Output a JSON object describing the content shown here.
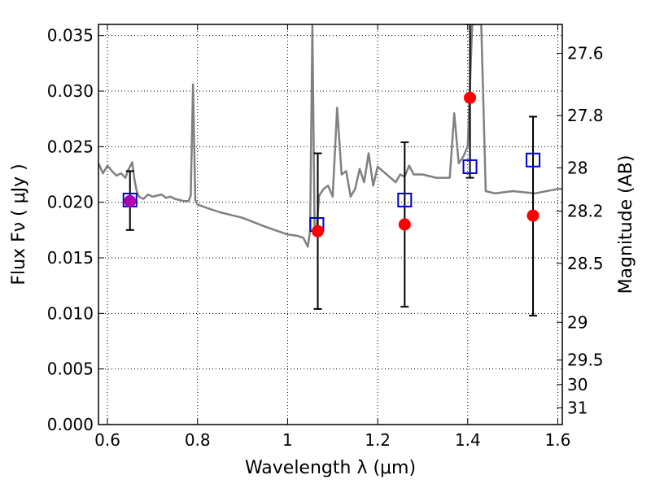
{
  "chart_data": {
    "type": "scatter",
    "xlabel": "Wavelength  λ (μm)",
    "ylabel": "Flux  Fν  ( μJy )",
    "ylabel_right": "Magnitude (AB)",
    "xlim": [
      0.58,
      1.61
    ],
    "ylim": [
      0.0,
      0.036
    ],
    "grid": true,
    "x_ticks": [
      0.6,
      0.8,
      1.0,
      1.2,
      1.4,
      1.6
    ],
    "x_tick_labels": [
      "0.6",
      "0.8",
      "1",
      "1.2",
      "1.4",
      "1.6"
    ],
    "y_ticks": [
      0.0,
      0.005,
      0.01,
      0.015,
      0.02,
      0.025,
      0.03,
      0.035
    ],
    "y_tick_labels": [
      "0.000",
      "0.005",
      "0.010",
      "0.015",
      "0.020",
      "0.025",
      "0.030",
      "0.035"
    ],
    "right_ticks": [
      {
        "label": "27.6",
        "flux": 0.0334
      },
      {
        "label": "27.8",
        "flux": 0.0278
      },
      {
        "label": "28",
        "flux": 0.0231
      },
      {
        "label": "28.2",
        "flux": 0.0192
      },
      {
        "label": "28.5",
        "flux": 0.0145
      },
      {
        "label": "29",
        "flux": 0.0092
      },
      {
        "label": "29.5",
        "flux": 0.0058
      },
      {
        "label": "30",
        "flux": 0.0036
      },
      {
        "label": "31",
        "flux": 0.0015
      }
    ],
    "model_spectrum": {
      "color": "#808080",
      "x": [
        0.58,
        0.59,
        0.6,
        0.61,
        0.62,
        0.63,
        0.64,
        0.645,
        0.655,
        0.66,
        0.665,
        0.67,
        0.68,
        0.69,
        0.7,
        0.71,
        0.72,
        0.73,
        0.74,
        0.75,
        0.76,
        0.77,
        0.78,
        0.785,
        0.79,
        0.795,
        0.8,
        0.82,
        0.85,
        0.9,
        0.95,
        1.0,
        1.02,
        1.035,
        1.045,
        1.05,
        1.055,
        1.06,
        1.065,
        1.07,
        1.08,
        1.09,
        1.1,
        1.11,
        1.12,
        1.13,
        1.14,
        1.15,
        1.16,
        1.17,
        1.18,
        1.19,
        1.2,
        1.22,
        1.24,
        1.25,
        1.26,
        1.27,
        1.28,
        1.3,
        1.33,
        1.36,
        1.37,
        1.38,
        1.39,
        1.4,
        1.41,
        1.42,
        1.43,
        1.44,
        1.46,
        1.5,
        1.55,
        1.6,
        1.61
      ],
      "y": [
        0.0235,
        0.0226,
        0.0233,
        0.0228,
        0.0224,
        0.0226,
        0.0222,
        0.0228,
        0.0236,
        0.022,
        0.021,
        0.0205,
        0.0203,
        0.0207,
        0.0205,
        0.0206,
        0.0207,
        0.0204,
        0.0205,
        0.0203,
        0.0202,
        0.0201,
        0.0201,
        0.0206,
        0.0306,
        0.0202,
        0.0198,
        0.0195,
        0.0191,
        0.0186,
        0.0178,
        0.0171,
        0.017,
        0.0168,
        0.016,
        0.0175,
        0.036,
        0.0175,
        0.0179,
        0.0206,
        0.0212,
        0.0215,
        0.0205,
        0.0285,
        0.0225,
        0.0228,
        0.0205,
        0.0212,
        0.023,
        0.0218,
        0.0244,
        0.0215,
        0.0232,
        0.0225,
        0.0218,
        0.0225,
        0.0223,
        0.0233,
        0.0225,
        0.0225,
        0.0222,
        0.0222,
        0.028,
        0.0235,
        0.0241,
        0.025,
        0.036,
        0.036,
        0.036,
        0.021,
        0.0208,
        0.021,
        0.0208,
        0.0212,
        0.0212
      ]
    },
    "series": [
      {
        "name": "",
        "marker": "hollow-square",
        "color": "#0000cc",
        "x": [
          0.65,
          1.065,
          1.26,
          1.405,
          1.545
        ],
        "values": [
          0.0202,
          0.018,
          0.0202,
          0.0232,
          0.0238
        ]
      },
      {
        "name": "",
        "marker": "filled-circle",
        "color": "#ff0000",
        "x": [
          0.65,
          1.067,
          1.26,
          1.405,
          1.545
        ],
        "values": [
          0.0201,
          0.0174,
          0.018,
          0.0294,
          0.0188
        ],
        "first_point_color": "#b000b0"
      }
    ],
    "errorbars": {
      "color": "#000000",
      "x": [
        0.65,
        1.067,
        1.26,
        1.405,
        1.545
      ],
      "values": [
        0.0201,
        0.0174,
        0.018,
        0.0294,
        0.0188
      ],
      "low": [
        0.0175,
        0.0104,
        0.0106,
        0.0222,
        0.0098
      ],
      "high": [
        0.0228,
        0.0244,
        0.0254,
        0.036,
        0.0277
      ]
    }
  }
}
